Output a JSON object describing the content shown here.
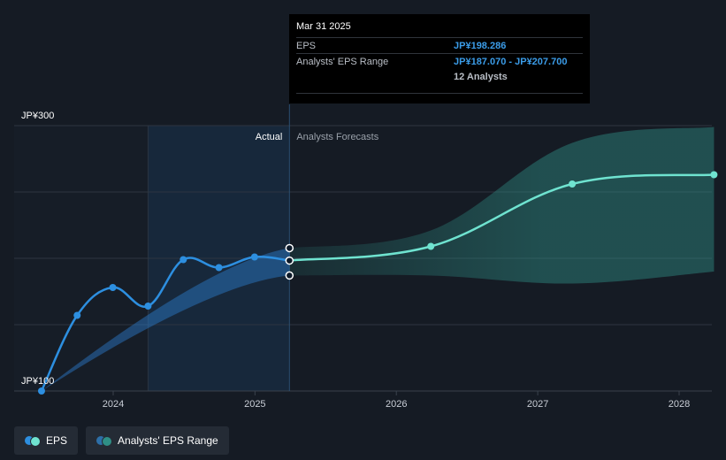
{
  "chart_data": {
    "type": "line",
    "y_axis": {
      "top_label": "JP¥300",
      "bottom_label": "JP¥100",
      "ylim": [
        100,
        300
      ]
    },
    "x_ticks": [
      "2024",
      "2025",
      "2026",
      "2027",
      "2028"
    ],
    "region_labels": {
      "actual": "Actual",
      "forecast": "Analysts Forecasts"
    },
    "series": [
      {
        "name": "EPS",
        "color": "#2d8fe0",
        "points": [
          {
            "x": "2023-06-30",
            "y": 100
          },
          {
            "x": "2023-09-30",
            "y": 157
          },
          {
            "x": "2023-12-31",
            "y": 178
          },
          {
            "x": "2024-03-31",
            "y": 164
          },
          {
            "x": "2024-06-30",
            "y": 199
          },
          {
            "x": "2024-09-30",
            "y": 193
          },
          {
            "x": "2024-12-31",
            "y": 201
          },
          {
            "x": "2025-03-31",
            "y": 198.286
          }
        ]
      },
      {
        "name": "EPS",
        "color": "#6fe3d0",
        "points": [
          {
            "x": "2025-03-31",
            "y": 198.286
          },
          {
            "x": "2026-03-31",
            "y": 209
          },
          {
            "x": "2027-03-31",
            "y": 256
          },
          {
            "x": "2028-03-31",
            "y": 263
          }
        ]
      }
    ],
    "range": {
      "name": "Analysts' EPS Range",
      "points": [
        {
          "x": "2025-03-31",
          "low": 187.07,
          "high": 207.7
        },
        {
          "x": "2026-03-31",
          "low": 187,
          "high": 221
        },
        {
          "x": "2027-03-31",
          "low": 181,
          "high": 287
        },
        {
          "x": "2028-03-31",
          "low": 190,
          "high": 299
        }
      ]
    },
    "past_band": {
      "start": {
        "x": "2023-06-30",
        "y": 100
      },
      "end_low": 187.07,
      "end_high": 207.7
    }
  },
  "tooltip": {
    "date": "Mar 31 2025",
    "eps_label": "EPS",
    "eps_value": "JP¥198.286",
    "range_label": "Analysts' EPS Range",
    "range_value": "JP¥187.070 - JP¥207.700",
    "analysts": "12 Analysts"
  },
  "legend": [
    {
      "label": "EPS",
      "colors": [
        "#6fe3d0",
        "#2d8fe0"
      ]
    },
    {
      "label": "Analysts' EPS Range",
      "colors": [
        "#2f8f86",
        "#2d6fa8"
      ]
    }
  ]
}
